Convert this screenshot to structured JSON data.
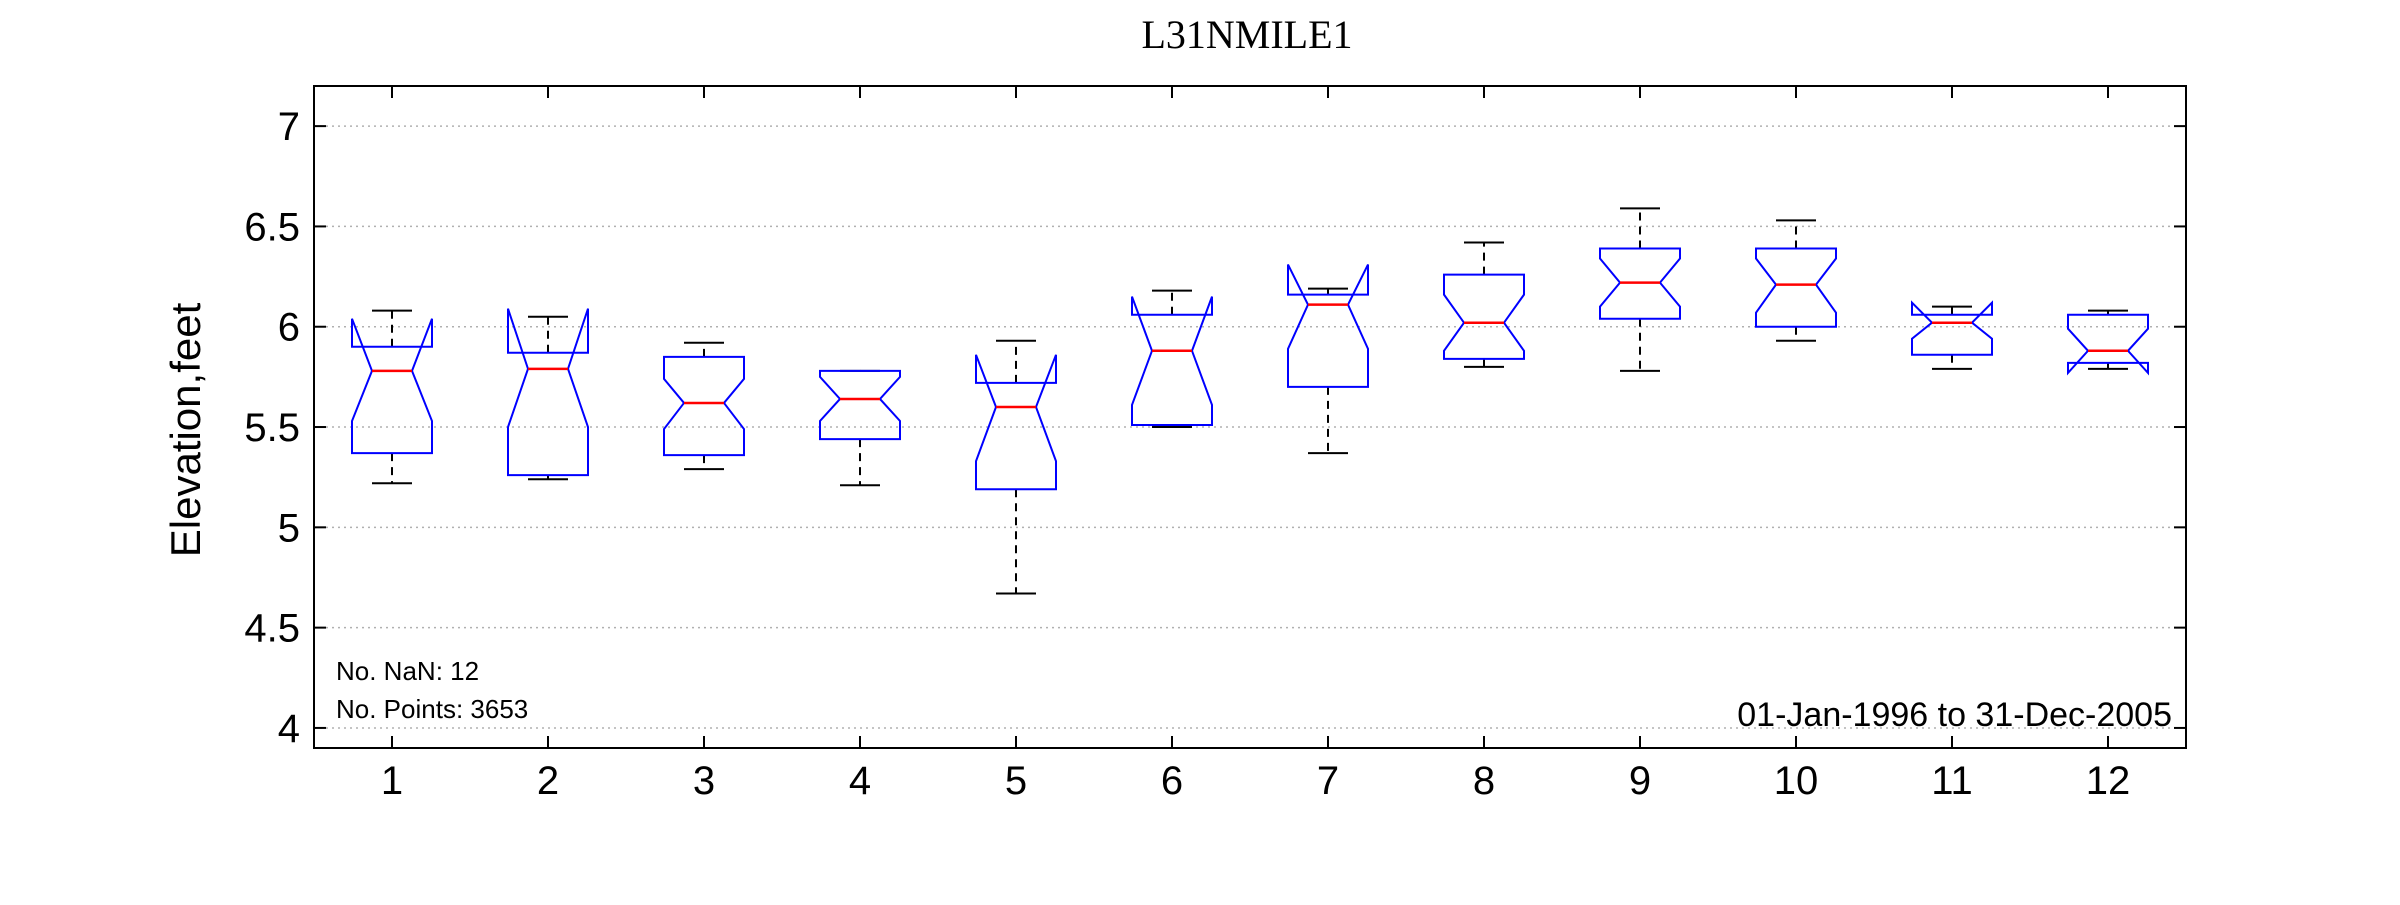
{
  "chart_data": {
    "type": "box",
    "title": "L31NMILE1",
    "xlabel": "",
    "ylabel": "Elevation,feet",
    "ylim": [
      3.9,
      7.2
    ],
    "yticks": [
      4,
      4.5,
      5,
      5.5,
      6,
      6.5,
      7
    ],
    "ytick_labels": [
      "4",
      "4.5",
      "5",
      "5.5",
      "6",
      "6.5",
      "7"
    ],
    "categories": [
      "1",
      "2",
      "3",
      "4",
      "5",
      "6",
      "7",
      "8",
      "9",
      "10",
      "11",
      "12"
    ],
    "grid": "horizontal-dotted",
    "notched": true,
    "boxes": [
      {
        "label": "1",
        "whisker_low": 5.22,
        "q1": 5.37,
        "median": 5.78,
        "q3": 5.9,
        "whisker_high": 6.08,
        "notch_low": 5.53,
        "notch_high": 6.04
      },
      {
        "label": "2",
        "whisker_low": 5.24,
        "q1": 5.26,
        "median": 5.79,
        "q3": 5.87,
        "whisker_high": 6.05,
        "notch_low": 5.5,
        "notch_high": 6.09
      },
      {
        "label": "3",
        "whisker_low": 5.29,
        "q1": 5.36,
        "median": 5.62,
        "q3": 5.85,
        "whisker_high": 5.92,
        "notch_low": 5.49,
        "notch_high": 5.74
      },
      {
        "label": "4",
        "whisker_low": 5.21,
        "q1": 5.44,
        "median": 5.64,
        "q3": 5.78,
        "whisker_high": 5.78,
        "notch_low": 5.53,
        "notch_high": 5.75
      },
      {
        "label": "5",
        "whisker_low": 4.67,
        "q1": 5.19,
        "median": 5.6,
        "q3": 5.72,
        "whisker_high": 5.93,
        "notch_low": 5.33,
        "notch_high": 5.86
      },
      {
        "label": "6",
        "whisker_low": 5.5,
        "q1": 5.51,
        "median": 5.88,
        "q3": 6.06,
        "whisker_high": 6.18,
        "notch_low": 5.61,
        "notch_high": 6.15
      },
      {
        "label": "7",
        "whisker_low": 5.37,
        "q1": 5.7,
        "median": 6.11,
        "q3": 6.16,
        "whisker_high": 6.19,
        "notch_low": 5.89,
        "notch_high": 6.31
      },
      {
        "label": "8",
        "whisker_low": 5.8,
        "q1": 5.84,
        "median": 6.02,
        "q3": 6.26,
        "whisker_high": 6.42,
        "notch_low": 5.88,
        "notch_high": 6.16
      },
      {
        "label": "9",
        "whisker_low": 5.78,
        "q1": 6.04,
        "median": 6.22,
        "q3": 6.39,
        "whisker_high": 6.59,
        "notch_low": 6.1,
        "notch_high": 6.34
      },
      {
        "label": "10",
        "whisker_low": 5.93,
        "q1": 6.0,
        "median": 6.21,
        "q3": 6.39,
        "whisker_high": 6.53,
        "notch_low": 6.07,
        "notch_high": 6.34
      },
      {
        "label": "11",
        "whisker_low": 5.79,
        "q1": 5.86,
        "median": 6.02,
        "q3": 6.06,
        "whisker_high": 6.1,
        "notch_low": 5.94,
        "notch_high": 6.12
      },
      {
        "label": "12",
        "whisker_low": 5.79,
        "q1": 5.82,
        "median": 5.88,
        "q3": 6.06,
        "whisker_high": 6.08,
        "notch_low": 5.77,
        "notch_high": 5.99
      }
    ],
    "annotations": {
      "nan_label": "No. NaN: 12",
      "points_label": "No. Points: 3653",
      "date_range": "01-Jan-1996 to 31-Dec-2005"
    },
    "colors": {
      "box": "#0000ff",
      "median": "#ff0000",
      "whisker": "#000000",
      "grid": "#b0b0b0",
      "axis": "#000000"
    }
  }
}
